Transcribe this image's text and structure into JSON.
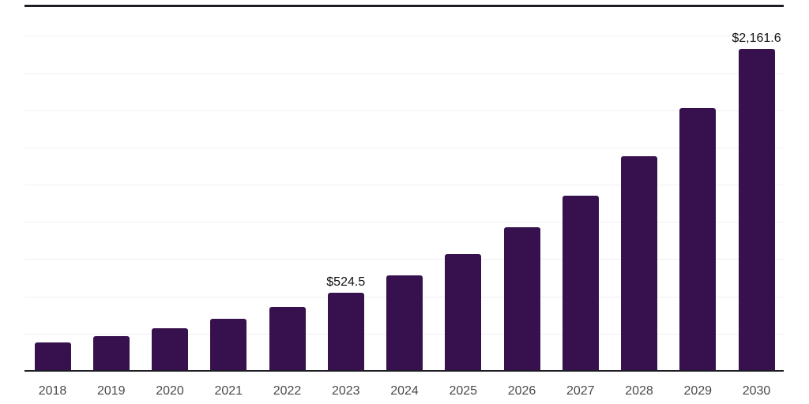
{
  "chart_data": {
    "type": "bar",
    "title": "",
    "xlabel": "",
    "ylabel": "",
    "categories": [
      "2018",
      "2019",
      "2020",
      "2021",
      "2022",
      "2023",
      "2024",
      "2025",
      "2026",
      "2027",
      "2028",
      "2029",
      "2030"
    ],
    "values": [
      190.7,
      233.5,
      285.8,
      349.9,
      428.4,
      524.5,
      642.1,
      786.1,
      962.4,
      1178.2,
      1442.4,
      1765.8,
      2161.6
    ],
    "data_labels": {
      "2023": "$524.5",
      "2030": "$2,161.6"
    },
    "currency_prefix": "$",
    "ylim": [
      0,
      2500
    ],
    "grid_step": 250,
    "grid_on": true,
    "legend": "none",
    "colors": {
      "bar": "#36114e",
      "axis": "#1c1c24",
      "gridline": "#efeff1",
      "tick_label": "#4a4a4a",
      "value_label": "#121212",
      "background": "#ffffff"
    }
  }
}
